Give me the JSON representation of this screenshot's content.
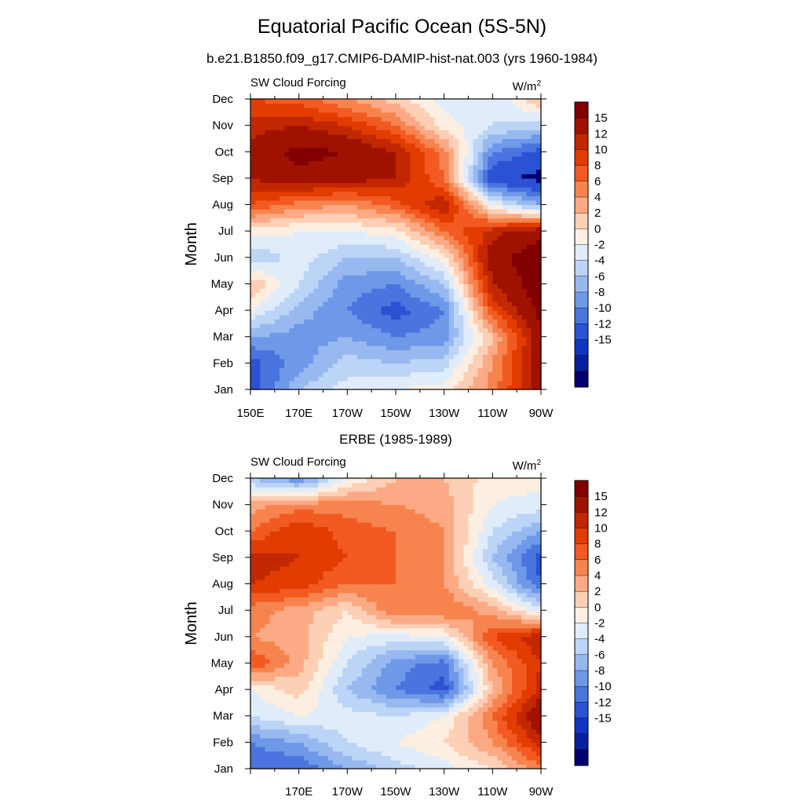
{
  "title": "Equatorial Pacific Ocean (5S-5N)",
  "subtitle": "b.e21.B1850.f09_g17.CMIP6-DAMIP-hist-nat.003 (yrs 1960-1984)",
  "colorbar": {
    "levels": [
      "15",
      "12",
      "10",
      "8",
      "6",
      "4",
      "2",
      "0",
      "-2",
      "-4",
      "-6",
      "-8",
      "-10",
      "-12",
      "-15"
    ],
    "colors": [
      "#800000",
      "#a01200",
      "#c22800",
      "#e23c00",
      "#f25a22",
      "#f7844e",
      "#fbaa85",
      "#fdcfb4",
      "#fdeee2",
      "#e0ecfa",
      "#bcd4f6",
      "#97b9f0",
      "#6f98e8",
      "#4a74de",
      "#2b52d4",
      "#1234c4",
      "#0a1f9e",
      "#00006e"
    ]
  },
  "chart_data": [
    {
      "type": "heatmap",
      "title": "",
      "left_label": "SW Cloud Forcing",
      "right_label": "W/m",
      "right_label_sup": "2",
      "ylabel": "Month",
      "xlabel": "",
      "x_ticks": [
        "150E",
        "170E",
        "170W",
        "150W",
        "130W",
        "110W",
        "90W"
      ],
      "y_ticks": [
        "Jan",
        "Feb",
        "Mar",
        "Apr",
        "May",
        "Jun",
        "Jul",
        "Aug",
        "Sep",
        "Oct",
        "Nov",
        "Dec"
      ],
      "xlim": [
        "150E",
        "90W"
      ],
      "ylim": [
        "Jan",
        "Dec"
      ],
      "x": [
        150,
        170,
        190,
        210,
        230,
        250,
        270
      ],
      "y": [
        "Jan",
        "Feb",
        "Mar",
        "Apr",
        "May",
        "Jun",
        "Jul",
        "Aug",
        "Sep",
        "Oct",
        "Nov",
        "Dec"
      ],
      "values": [
        [
          -14,
          -6,
          -3,
          -2,
          -1,
          5,
          14
        ],
        [
          -13,
          -9,
          -5,
          -6,
          -5,
          4,
          14
        ],
        [
          -8,
          -9,
          -8,
          -10,
          -9,
          2,
          14
        ],
        [
          -2,
          -7,
          -10,
          -13,
          -10,
          8,
          16
        ],
        [
          2,
          -4,
          -9,
          -10,
          -6,
          12,
          17
        ],
        [
          -6,
          -3,
          -6,
          -6,
          -1,
          14,
          17
        ],
        [
          -1,
          -2,
          -2,
          -1,
          6,
          11,
          14
        ],
        [
          8,
          5,
          4,
          7,
          12,
          -2,
          -8
        ],
        [
          12,
          14,
          13,
          12,
          6,
          -14,
          -16
        ],
        [
          13,
          16,
          15,
          12,
          5,
          -10,
          -13
        ],
        [
          11,
          12,
          10,
          6,
          -1,
          -4,
          -5
        ],
        [
          8,
          7,
          4,
          1,
          -3,
          -4,
          2
        ]
      ]
    },
    {
      "type": "heatmap",
      "title": "ERBE (1985-1989)",
      "left_label": "SW Cloud Forcing",
      "right_label": "W/m",
      "right_label_sup": "2",
      "ylabel": "Month",
      "xlabel": "",
      "x_ticks": [
        "",
        "170E",
        "170W",
        "150W",
        "130W",
        "110W",
        "90W"
      ],
      "y_ticks": [
        "Jan",
        "Feb",
        "Mar",
        "Apr",
        "May",
        "Jun",
        "Jul",
        "Aug",
        "Sep",
        "Oct",
        "Nov",
        "Dec"
      ],
      "xlim": [
        "150E",
        "90W"
      ],
      "ylim": [
        "Jan",
        "Dec"
      ],
      "x": [
        150,
        170,
        190,
        210,
        230,
        250,
        270
      ],
      "y": [
        "Jan",
        "Feb",
        "Mar",
        "Apr",
        "May",
        "Jun",
        "Jul",
        "Aug",
        "Sep",
        "Oct",
        "Nov",
        "Dec"
      ],
      "values": [
        [
          -12,
          -12,
          -8,
          -5,
          -3,
          0,
          5
        ],
        [
          -10,
          -8,
          -4,
          -2,
          0,
          4,
          11
        ],
        [
          -4,
          -2,
          -3,
          -4,
          -2,
          6,
          15
        ],
        [
          -2,
          1,
          -6,
          -10,
          -13,
          2,
          11
        ],
        [
          8,
          3,
          -4,
          -9,
          -11,
          4,
          10
        ],
        [
          4,
          3,
          -2,
          -3,
          -2,
          8,
          12
        ],
        [
          5,
          3,
          0,
          6,
          6,
          3,
          -3
        ],
        [
          10,
          9,
          6,
          6,
          4,
          -3,
          -12
        ],
        [
          11,
          10,
          8,
          6,
          4,
          -6,
          -13
        ],
        [
          6,
          10,
          7,
          6,
          4,
          -4,
          -8
        ],
        [
          3,
          5,
          5,
          4,
          3,
          -2,
          -3
        ],
        [
          -6,
          -10,
          -2,
          2,
          2,
          -1,
          -1
        ]
      ]
    }
  ]
}
